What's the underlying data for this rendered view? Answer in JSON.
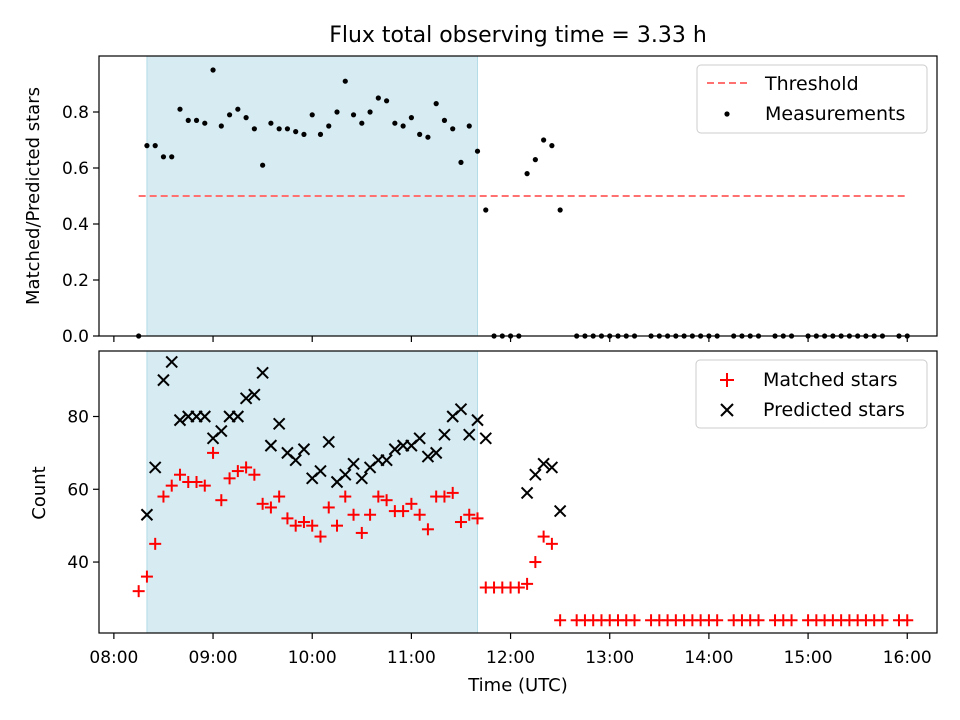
{
  "chart_data": [
    {
      "type": "scatter",
      "title": "Flux total observing time = 3.33 h",
      "xlabel": "",
      "ylabel": "Matched/Predicted stars",
      "xlim": [
        "07:51",
        "16:18"
      ],
      "ylim": [
        0,
        1.0
      ],
      "yticks": [
        "0.0",
        "0.2",
        "0.4",
        "0.6",
        "0.8"
      ],
      "highlight_span": [
        "08:20",
        "11:40"
      ],
      "legend_placement": "upper-right",
      "series": [
        {
          "name": "Threshold",
          "kind": "dashed-line",
          "color": "#ff7070",
          "points": [
            [
              "08:15",
              0.5
            ],
            [
              "16:00",
              0.5
            ]
          ]
        },
        {
          "name": "Measurements",
          "kind": "dots",
          "color": "#000000",
          "points": [
            [
              "08:15",
              0.0
            ],
            [
              "08:20",
              0.68
            ],
            [
              "08:25",
              0.68
            ],
            [
              "08:30",
              0.64
            ],
            [
              "08:35",
              0.64
            ],
            [
              "08:40",
              0.81
            ],
            [
              "08:45",
              0.77
            ],
            [
              "08:50",
              0.77
            ],
            [
              "08:55",
              0.76
            ],
            [
              "09:00",
              0.95
            ],
            [
              "09:05",
              0.75
            ],
            [
              "09:10",
              0.79
            ],
            [
              "09:15",
              0.81
            ],
            [
              "09:20",
              0.78
            ],
            [
              "09:25",
              0.74
            ],
            [
              "09:30",
              0.61
            ],
            [
              "09:35",
              0.76
            ],
            [
              "09:40",
              0.74
            ],
            [
              "09:45",
              0.74
            ],
            [
              "09:50",
              0.73
            ],
            [
              "09:55",
              0.72
            ],
            [
              "10:00",
              0.79
            ],
            [
              "10:05",
              0.72
            ],
            [
              "10:10",
              0.75
            ],
            [
              "10:15",
              0.8
            ],
            [
              "10:20",
              0.91
            ],
            [
              "10:25",
              0.79
            ],
            [
              "10:30",
              0.76
            ],
            [
              "10:35",
              0.8
            ],
            [
              "10:40",
              0.85
            ],
            [
              "10:45",
              0.84
            ],
            [
              "10:50",
              0.76
            ],
            [
              "10:55",
              0.75
            ],
            [
              "11:00",
              0.78
            ],
            [
              "11:05",
              0.72
            ],
            [
              "11:10",
              0.71
            ],
            [
              "11:15",
              0.83
            ],
            [
              "11:20",
              0.77
            ],
            [
              "11:25",
              0.74
            ],
            [
              "11:30",
              0.62
            ],
            [
              "11:35",
              0.75
            ],
            [
              "11:40",
              0.66
            ],
            [
              "11:45",
              0.45
            ],
            [
              "11:50",
              0.0
            ],
            [
              "11:55",
              0.0
            ],
            [
              "12:00",
              0.0
            ],
            [
              "12:05",
              0.0
            ],
            [
              "12:10",
              0.58
            ],
            [
              "12:15",
              0.63
            ],
            [
              "12:20",
              0.7
            ],
            [
              "12:25",
              0.68
            ],
            [
              "12:30",
              0.45
            ],
            [
              "12:40",
              0.0
            ],
            [
              "12:45",
              0.0
            ],
            [
              "12:50",
              0.0
            ],
            [
              "12:55",
              0.0
            ],
            [
              "13:00",
              0.0
            ],
            [
              "13:05",
              0.0
            ],
            [
              "13:10",
              0.0
            ],
            [
              "13:15",
              0.0
            ],
            [
              "13:25",
              0.0
            ],
            [
              "13:30",
              0.0
            ],
            [
              "13:35",
              0.0
            ],
            [
              "13:40",
              0.0
            ],
            [
              "13:45",
              0.0
            ],
            [
              "13:50",
              0.0
            ],
            [
              "13:55",
              0.0
            ],
            [
              "14:00",
              0.0
            ],
            [
              "14:05",
              0.0
            ],
            [
              "14:15",
              0.0
            ],
            [
              "14:20",
              0.0
            ],
            [
              "14:25",
              0.0
            ],
            [
              "14:30",
              0.0
            ],
            [
              "14:40",
              0.0
            ],
            [
              "14:45",
              0.0
            ],
            [
              "14:50",
              0.0
            ],
            [
              "15:00",
              0.0
            ],
            [
              "15:05",
              0.0
            ],
            [
              "15:10",
              0.0
            ],
            [
              "15:15",
              0.0
            ],
            [
              "15:20",
              0.0
            ],
            [
              "15:25",
              0.0
            ],
            [
              "15:30",
              0.0
            ],
            [
              "15:35",
              0.0
            ],
            [
              "15:40",
              0.0
            ],
            [
              "15:45",
              0.0
            ],
            [
              "15:55",
              0.0
            ],
            [
              "16:00",
              0.0
            ]
          ]
        }
      ]
    },
    {
      "type": "scatter",
      "xlabel": "Time (UTC)",
      "ylabel": "Count",
      "xlim": [
        "07:51",
        "16:18"
      ],
      "ylim": [
        20.5,
        98
      ],
      "yticks": [
        "40",
        "60",
        "80"
      ],
      "xticks": [
        "08:00",
        "09:00",
        "10:00",
        "11:00",
        "12:00",
        "13:00",
        "14:00",
        "15:00",
        "16:00"
      ],
      "highlight_span": [
        "08:20",
        "11:40"
      ],
      "legend_placement": "upper-right",
      "series": [
        {
          "name": "Matched stars",
          "kind": "plus",
          "color": "#ff0000",
          "points": [
            [
              "08:15",
              32
            ],
            [
              "08:20",
              36
            ],
            [
              "08:25",
              45
            ],
            [
              "08:30",
              58
            ],
            [
              "08:35",
              61
            ],
            [
              "08:40",
              64
            ],
            [
              "08:45",
              62
            ],
            [
              "08:50",
              62
            ],
            [
              "08:55",
              61
            ],
            [
              "09:00",
              70
            ],
            [
              "09:05",
              57
            ],
            [
              "09:10",
              63
            ],
            [
              "09:15",
              65
            ],
            [
              "09:20",
              66
            ],
            [
              "09:25",
              64
            ],
            [
              "09:30",
              56
            ],
            [
              "09:35",
              55
            ],
            [
              "09:40",
              58
            ],
            [
              "09:45",
              52
            ],
            [
              "09:50",
              50
            ],
            [
              "09:55",
              51
            ],
            [
              "10:00",
              50
            ],
            [
              "10:05",
              47
            ],
            [
              "10:10",
              55
            ],
            [
              "10:15",
              50
            ],
            [
              "10:20",
              58
            ],
            [
              "10:25",
              53
            ],
            [
              "10:30",
              48
            ],
            [
              "10:35",
              53
            ],
            [
              "10:40",
              58
            ],
            [
              "10:45",
              57
            ],
            [
              "10:50",
              54
            ],
            [
              "10:55",
              54
            ],
            [
              "11:00",
              56
            ],
            [
              "11:05",
              53
            ],
            [
              "11:10",
              49
            ],
            [
              "11:15",
              58
            ],
            [
              "11:20",
              58
            ],
            [
              "11:25",
              59
            ],
            [
              "11:30",
              51
            ],
            [
              "11:35",
              53
            ],
            [
              "11:40",
              52
            ],
            [
              "11:45",
              33
            ],
            [
              "11:50",
              33
            ],
            [
              "11:55",
              33
            ],
            [
              "12:00",
              33
            ],
            [
              "12:05",
              33
            ],
            [
              "12:10",
              34
            ],
            [
              "12:15",
              40
            ],
            [
              "12:20",
              47
            ],
            [
              "12:25",
              45
            ],
            [
              "12:30",
              24
            ],
            [
              "12:40",
              24
            ],
            [
              "12:45",
              24
            ],
            [
              "12:50",
              24
            ],
            [
              "12:55",
              24
            ],
            [
              "13:00",
              24
            ],
            [
              "13:05",
              24
            ],
            [
              "13:10",
              24
            ],
            [
              "13:15",
              24
            ],
            [
              "13:25",
              24
            ],
            [
              "13:30",
              24
            ],
            [
              "13:35",
              24
            ],
            [
              "13:40",
              24
            ],
            [
              "13:45",
              24
            ],
            [
              "13:50",
              24
            ],
            [
              "13:55",
              24
            ],
            [
              "14:00",
              24
            ],
            [
              "14:05",
              24
            ],
            [
              "14:15",
              24
            ],
            [
              "14:20",
              24
            ],
            [
              "14:25",
              24
            ],
            [
              "14:30",
              24
            ],
            [
              "14:40",
              24
            ],
            [
              "14:45",
              24
            ],
            [
              "14:50",
              24
            ],
            [
              "15:00",
              24
            ],
            [
              "15:05",
              24
            ],
            [
              "15:10",
              24
            ],
            [
              "15:15",
              24
            ],
            [
              "15:20",
              24
            ],
            [
              "15:25",
              24
            ],
            [
              "15:30",
              24
            ],
            [
              "15:35",
              24
            ],
            [
              "15:40",
              24
            ],
            [
              "15:45",
              24
            ],
            [
              "15:55",
              24
            ],
            [
              "16:00",
              24
            ]
          ]
        },
        {
          "name": "Predicted stars",
          "kind": "cross",
          "color": "#000000",
          "points": [
            [
              "08:20",
              53
            ],
            [
              "08:25",
              66
            ],
            [
              "08:30",
              90
            ],
            [
              "08:35",
              95
            ],
            [
              "08:40",
              79
            ],
            [
              "08:45",
              80
            ],
            [
              "08:50",
              80
            ],
            [
              "08:55",
              80
            ],
            [
              "09:00",
              74
            ],
            [
              "09:05",
              76
            ],
            [
              "09:10",
              80
            ],
            [
              "09:15",
              80
            ],
            [
              "09:20",
              85
            ],
            [
              "09:25",
              86
            ],
            [
              "09:30",
              92
            ],
            [
              "09:35",
              72
            ],
            [
              "09:40",
              78
            ],
            [
              "09:45",
              70
            ],
            [
              "09:50",
              68
            ],
            [
              "09:55",
              71
            ],
            [
              "10:00",
              63
            ],
            [
              "10:05",
              65
            ],
            [
              "10:10",
              73
            ],
            [
              "10:15",
              62
            ],
            [
              "10:20",
              64
            ],
            [
              "10:25",
              67
            ],
            [
              "10:30",
              63
            ],
            [
              "10:35",
              66
            ],
            [
              "10:40",
              68
            ],
            [
              "10:45",
              68
            ],
            [
              "10:50",
              71
            ],
            [
              "10:55",
              72
            ],
            [
              "11:00",
              72
            ],
            [
              "11:05",
              74
            ],
            [
              "11:10",
              69
            ],
            [
              "11:15",
              70
            ],
            [
              "11:20",
              75
            ],
            [
              "11:25",
              80
            ],
            [
              "11:30",
              82
            ],
            [
              "11:35",
              75
            ],
            [
              "11:40",
              79
            ],
            [
              "11:45",
              74
            ],
            [
              "12:10",
              59
            ],
            [
              "12:15",
              64
            ],
            [
              "12:20",
              67
            ],
            [
              "12:25",
              66
            ],
            [
              "12:30",
              54
            ]
          ]
        }
      ]
    }
  ]
}
